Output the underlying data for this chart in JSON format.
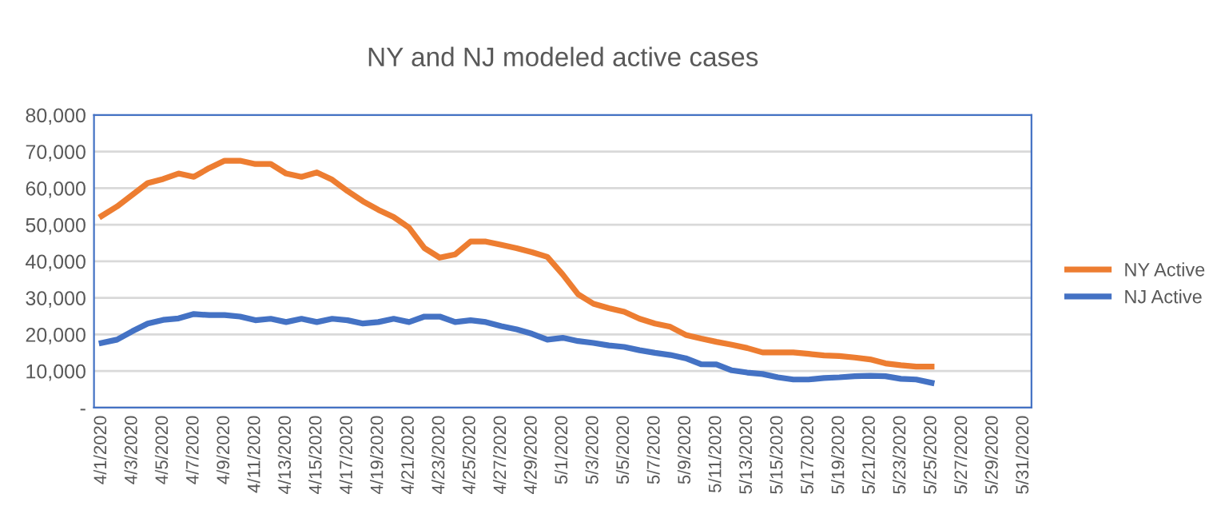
{
  "chart_data": {
    "type": "line",
    "title": "NY and NJ modeled active cases",
    "categories": [
      "4/1/2020",
      null,
      "4/3/2020",
      null,
      "4/5/2020",
      null,
      "4/7/2020",
      null,
      "4/9/2020",
      null,
      "4/11/2020",
      null,
      "4/13/2020",
      null,
      "4/15/2020",
      null,
      "4/17/2020",
      null,
      "4/19/2020",
      null,
      "4/21/2020",
      null,
      "4/23/2020",
      null,
      "4/25/2020",
      null,
      "4/27/2020",
      null,
      "4/29/2020",
      null,
      "5/1/2020",
      null,
      "5/3/2020",
      null,
      "5/5/2020",
      null,
      "5/7/2020",
      null,
      "5/9/2020",
      null,
      "5/11/2020",
      null,
      "5/13/2020",
      null,
      "5/15/2020",
      null,
      "5/17/2020",
      null,
      "5/19/2020",
      null,
      "5/21/2020",
      null,
      "5/23/2020",
      null,
      "5/25/2020",
      null,
      "5/27/2020",
      null,
      "5/29/2020",
      null,
      "5/31/2020"
    ],
    "series": [
      {
        "name": "NY Active",
        "color": "#ed7d31",
        "values": [
          52400,
          55000,
          58200,
          61400,
          62500,
          64000,
          63100,
          65500,
          67500,
          67500,
          66600,
          66600,
          64000,
          63100,
          64300,
          62300,
          59200,
          56400,
          54100,
          52100,
          49200,
          43600,
          41000,
          41900,
          45400,
          45400,
          44500,
          43600,
          42500,
          41200,
          36400,
          31000,
          28400,
          27200,
          26200,
          24300,
          23000,
          22100,
          19900,
          18900,
          18000,
          17200,
          16300,
          15100,
          15100,
          15100,
          14700,
          14300,
          14100,
          13700,
          13200,
          12100,
          11600,
          11200,
          11200,
          null,
          null,
          null,
          null,
          null,
          null
        ]
      },
      {
        "name": "NJ Active",
        "color": "#4472c4",
        "values": [
          17700,
          18600,
          20900,
          23000,
          24000,
          24400,
          25600,
          25300,
          25300,
          24900,
          23900,
          24300,
          23400,
          24300,
          23400,
          24300,
          23900,
          23000,
          23400,
          24300,
          23400,
          24900,
          24900,
          23400,
          23900,
          23400,
          22300,
          21400,
          20200,
          18600,
          19100,
          18200,
          17700,
          17000,
          16600,
          15700,
          15000,
          14400,
          13500,
          11900,
          11800,
          10200,
          9600,
          9200,
          8300,
          7700,
          7700,
          8100,
          8300,
          8600,
          8700,
          8600,
          7900,
          7700,
          6800,
          null,
          null,
          null,
          null,
          null,
          null
        ]
      }
    ],
    "ylim": [
      0,
      80000
    ],
    "yticks": [
      {
        "value": 0,
        "label": "-"
      },
      {
        "value": 10000,
        "label": "10,000"
      },
      {
        "value": 20000,
        "label": "20,000"
      },
      {
        "value": 30000,
        "label": "30,000"
      },
      {
        "value": 40000,
        "label": "40,000"
      },
      {
        "value": 50000,
        "label": "50,000"
      },
      {
        "value": 60000,
        "label": "60,000"
      },
      {
        "value": 70000,
        "label": "70,000"
      },
      {
        "value": 80000,
        "label": "80,000"
      }
    ],
    "grid": "y",
    "legend": "right",
    "marker": "none",
    "line_style": "solid"
  }
}
